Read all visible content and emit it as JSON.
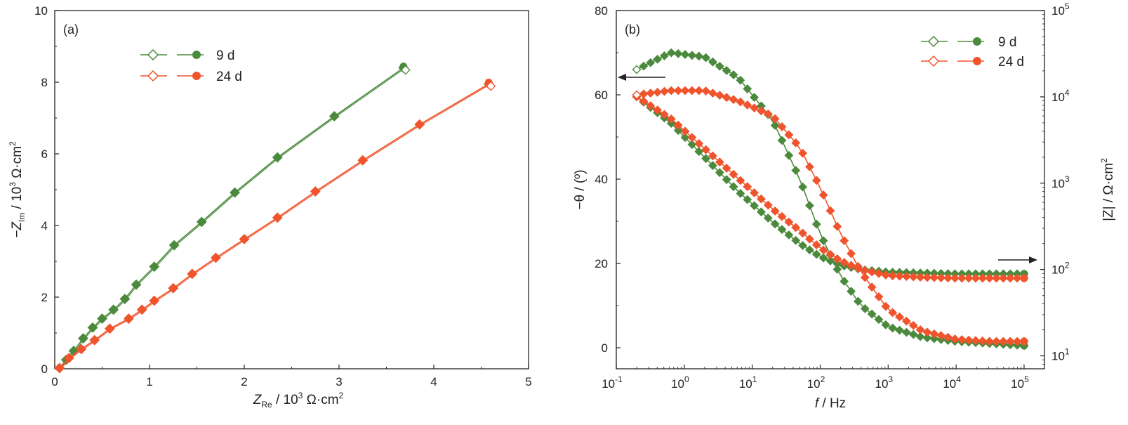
{
  "chart_data": [
    {
      "type": "scatter",
      "panel_label": "(a)",
      "xlabel_main": "Z",
      "xlabel_sub": "Re",
      "xlabel_unit_pre": " / 10",
      "xlabel_unit_exp": "3",
      "xlabel_unit_post": " Ω·cm",
      "xlabel_unit_exp2": "2",
      "ylabel_main": "−Z",
      "ylabel_sub": "Im",
      "ylabel_unit_pre": " / 10",
      "ylabel_unit_exp": "3",
      "ylabel_unit_post": " Ω·cm",
      "ylabel_unit_exp2": "2",
      "xlim": [
        0,
        5
      ],
      "ylim": [
        0,
        10
      ],
      "xticks": [
        "0",
        "1",
        "2",
        "3",
        "4",
        "5"
      ],
      "yticks": [
        "0",
        "2",
        "4",
        "6",
        "8",
        "10"
      ],
      "legend_position": "top-left",
      "series": [
        {
          "name": "9 d",
          "color": "#4b8a3c",
          "x": [
            0.05,
            0.12,
            0.2,
            0.3,
            0.4,
            0.5,
            0.62,
            0.74,
            0.86,
            1.05,
            1.26,
            1.55,
            1.9,
            2.35,
            2.95,
            3.68
          ],
          "y": [
            0.02,
            0.25,
            0.5,
            0.85,
            1.15,
            1.4,
            1.65,
            1.95,
            2.35,
            2.85,
            3.45,
            4.1,
            4.92,
            5.9,
            7.05,
            8.4
          ]
        },
        {
          "name": "24 d",
          "color": "#f0542d",
          "x": [
            0.05,
            0.15,
            0.28,
            0.42,
            0.58,
            0.78,
            0.92,
            1.05,
            1.25,
            1.45,
            1.7,
            2.0,
            2.35,
            2.75,
            3.25,
            3.85,
            4.58
          ],
          "y": [
            0.02,
            0.3,
            0.55,
            0.8,
            1.12,
            1.4,
            1.65,
            1.9,
            2.25,
            2.65,
            3.1,
            3.62,
            4.22,
            4.95,
            5.82,
            6.82,
            7.95
          ]
        }
      ]
    },
    {
      "type": "scatter",
      "panel_label": "(b)",
      "xlabel_main": "f",
      "xlabel_unit": " / Hz",
      "ylabel_left": "−θ / (º)",
      "ylabel_right": "|Z| / Ω·cm",
      "ylabel_right_exp": "2",
      "xlim_log10": [
        -1,
        5.3
      ],
      "ylim_left": [
        -5,
        80
      ],
      "ylim_right_log10": [
        0.85,
        5
      ],
      "xticks": [
        {
          "base": "10",
          "exp": "-1"
        },
        {
          "base": "10",
          "exp": "0"
        },
        {
          "base": "10",
          "exp": "1"
        },
        {
          "base": "10",
          "exp": "2"
        },
        {
          "base": "10",
          "exp": "3"
        },
        {
          "base": "10",
          "exp": "4"
        },
        {
          "base": "10",
          "exp": "5"
        }
      ],
      "yticks_left": [
        "0",
        "20",
        "40",
        "60",
        "80"
      ],
      "yticks_right": [
        {
          "base": "10",
          "exp": "1"
        },
        {
          "base": "10",
          "exp": "2"
        },
        {
          "base": "10",
          "exp": "3"
        },
        {
          "base": "10",
          "exp": "4"
        },
        {
          "base": "10",
          "exp": "5"
        }
      ],
      "legend_position": "top-right",
      "series": [
        {
          "name": "9 d",
          "color": "#4b8a3c",
          "log_f": [
            -0.7,
            -0.2,
            0.3,
            0.8,
            1.3,
            1.7,
            2.0,
            2.3,
            2.6,
            3.0,
            3.5,
            4.0,
            4.5,
            5.0
          ],
          "phase": [
            66,
            70,
            69,
            64,
            54,
            40,
            27,
            17,
            10,
            5,
            2.5,
            1.5,
            1,
            0.5
          ],
          "log_z": [
            4.0,
            3.7,
            3.3,
            2.9,
            2.55,
            2.3,
            2.15,
            2.05,
            2.0,
            1.97,
            1.96,
            1.95,
            1.95,
            1.95
          ]
        },
        {
          "name": "24 d",
          "color": "#f0542d",
          "log_f": [
            -0.7,
            -0.2,
            0.3,
            0.8,
            1.3,
            1.7,
            2.0,
            2.3,
            2.6,
            3.0,
            3.5,
            4.0,
            4.5,
            5.0
          ],
          "phase": [
            60,
            61,
            61,
            58.5,
            55,
            47.5,
            38,
            27,
            18,
            9,
            4,
            2,
            1.5,
            1.5
          ],
          "log_z": [
            4.0,
            3.75,
            3.4,
            3.05,
            2.7,
            2.45,
            2.25,
            2.1,
            2.0,
            1.93,
            1.91,
            1.9,
            1.9,
            1.9
          ]
        }
      ]
    }
  ]
}
